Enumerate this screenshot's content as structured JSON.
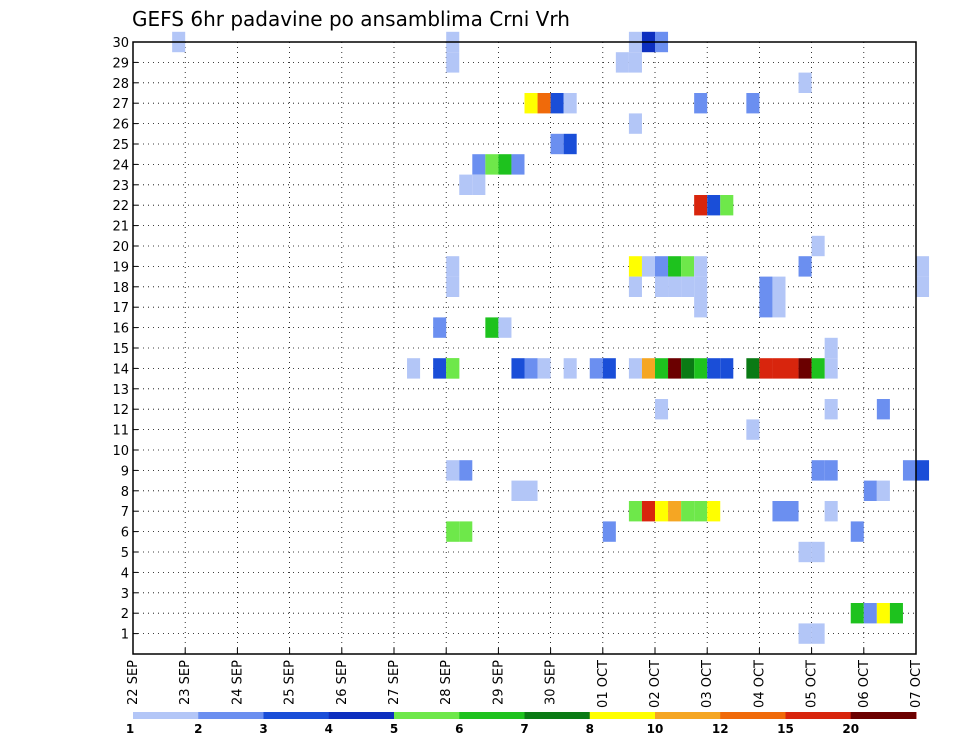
{
  "chart_data": {
    "type": "heatmap",
    "title": "GEFS 6hr padavine po ansamblima Crni Vrh",
    "x_tick_labels": [
      "22 SEP",
      "23 SEP",
      "24 SEP",
      "25 SEP",
      "26 SEP",
      "27 SEP",
      "28 SEP",
      "29 SEP",
      "30 SEP",
      "01 OCT",
      "02 OCT",
      "03 OCT",
      "04 OCT",
      "05 OCT",
      "06 OCT",
      "07 OCT"
    ],
    "y_tick_labels": [
      "1",
      "2",
      "3",
      "4",
      "5",
      "6",
      "7",
      "8",
      "9",
      "10",
      "11",
      "12",
      "13",
      "14",
      "15",
      "16",
      "17",
      "18",
      "19",
      "20",
      "21",
      "22",
      "23",
      "24",
      "25",
      "26",
      "27",
      "28",
      "29",
      "30"
    ],
    "grid": true,
    "legend_position": "bottom",
    "colorbar": {
      "labels": [
        "1",
        "2",
        "3",
        "4",
        "5",
        "6",
        "7",
        "8",
        "10",
        "12",
        "15",
        "20"
      ],
      "colors": [
        "#b3c6f7",
        "#6b8ff0",
        "#1a4ed8",
        "#0d2fbf",
        "#6ee84a",
        "#1ec21e",
        "#0a7a14",
        "#ffff00",
        "#f5a623",
        "#f06a0a",
        "#d8250d",
        "#a80c0c",
        "#6b0000"
      ]
    },
    "member_cells": [
      {
        "member": 30,
        "time": "22 SEP 18Z",
        "level": 1
      },
      {
        "member": 30,
        "time": "28 SEP 00Z",
        "level": 1
      },
      {
        "member": 30,
        "time": "01 OCT 12Z",
        "level": 1
      },
      {
        "member": 30,
        "time": "01 OCT 18Z",
        "level": 4
      },
      {
        "member": 30,
        "time": "02 OCT 00Z",
        "level": 2
      },
      {
        "member": 29,
        "time": "28 SEP 00Z",
        "level": 1
      },
      {
        "member": 29,
        "time": "01 OCT 06Z",
        "level": 1
      },
      {
        "member": 29,
        "time": "01 OCT 12Z",
        "level": 1
      },
      {
        "member": 28,
        "time": "04 OCT 18Z",
        "level": 1
      },
      {
        "member": 27,
        "time": "29 SEP 12Z",
        "level": 8
      },
      {
        "member": 27,
        "time": "29 SEP 18Z",
        "level": 12
      },
      {
        "member": 27,
        "time": "30 SEP 00Z",
        "level": 3
      },
      {
        "member": 27,
        "time": "30 SEP 06Z",
        "level": 1
      },
      {
        "member": 27,
        "time": "02 OCT 18Z",
        "level": 2
      },
      {
        "member": 27,
        "time": "03 OCT 18Z",
        "level": 2
      },
      {
        "member": 26,
        "time": "01 OCT 12Z",
        "level": 1
      },
      {
        "member": 25,
        "time": "30 SEP 00Z",
        "level": 2
      },
      {
        "member": 25,
        "time": "30 SEP 06Z",
        "level": 3
      },
      {
        "member": 24,
        "time": "28 SEP 12Z",
        "level": 2
      },
      {
        "member": 24,
        "time": "28 SEP 18Z",
        "level": 5
      },
      {
        "member": 24,
        "time": "29 SEP 00Z",
        "level": 6
      },
      {
        "member": 24,
        "time": "29 SEP 06Z",
        "level": 2
      },
      {
        "member": 23,
        "time": "28 SEP 06Z",
        "level": 1
      },
      {
        "member": 23,
        "time": "28 SEP 12Z",
        "level": 1
      },
      {
        "member": 22,
        "time": "02 OCT 18Z",
        "level": 15
      },
      {
        "member": 22,
        "time": "03 OCT 00Z",
        "level": 3
      },
      {
        "member": 22,
        "time": "03 OCT 06Z",
        "level": 5
      },
      {
        "member": 20,
        "time": "05 OCT 00Z",
        "level": 1
      },
      {
        "member": 19,
        "time": "28 SEP 00Z",
        "level": 1
      },
      {
        "member": 19,
        "time": "01 OCT 12Z",
        "level": 8
      },
      {
        "member": 19,
        "time": "01 OCT 18Z",
        "level": 1
      },
      {
        "member": 19,
        "time": "02 OCT 00Z",
        "level": 2
      },
      {
        "member": 19,
        "time": "02 OCT 06Z",
        "level": 6
      },
      {
        "member": 19,
        "time": "02 OCT 12Z",
        "level": 5
      },
      {
        "member": 19,
        "time": "02 OCT 18Z",
        "level": 1
      },
      {
        "member": 19,
        "time": "04 OCT 18Z",
        "level": 2
      },
      {
        "member": 19,
        "time": "07 OCT 00Z",
        "level": 1
      },
      {
        "member": 18,
        "time": "28 SEP 00Z",
        "level": 1
      },
      {
        "member": 18,
        "time": "01 OCT 12Z",
        "level": 1
      },
      {
        "member": 18,
        "time": "02 OCT 00Z",
        "level": 1
      },
      {
        "member": 18,
        "time": "02 OCT 06Z",
        "level": 1
      },
      {
        "member": 18,
        "time": "02 OCT 12Z",
        "level": 1
      },
      {
        "member": 18,
        "time": "02 OCT 18Z",
        "level": 1
      },
      {
        "member": 18,
        "time": "04 OCT 00Z",
        "level": 2
      },
      {
        "member": 18,
        "time": "04 OCT 06Z",
        "level": 1
      },
      {
        "member": 18,
        "time": "07 OCT 00Z",
        "level": 1
      },
      {
        "member": 17,
        "time": "02 OCT 18Z",
        "level": 1
      },
      {
        "member": 17,
        "time": "04 OCT 00Z",
        "level": 2
      },
      {
        "member": 17,
        "time": "04 OCT 06Z",
        "level": 1
      },
      {
        "member": 16,
        "time": "27 SEP 18Z",
        "level": 2
      },
      {
        "member": 16,
        "time": "28 SEP 18Z",
        "level": 6
      },
      {
        "member": 16,
        "time": "29 SEP 00Z",
        "level": 1
      },
      {
        "member": 15,
        "time": "05 OCT 06Z",
        "level": 1
      },
      {
        "member": 14,
        "time": "05 OCT 06Z",
        "level": 1
      },
      {
        "member": 14,
        "time": "27 SEP 06Z",
        "level": 1
      },
      {
        "member": 14,
        "time": "27 SEP 18Z",
        "level": 3
      },
      {
        "member": 14,
        "time": "28 SEP 00Z",
        "level": 5
      },
      {
        "member": 14,
        "time": "28 SEP 00Z",
        "level": 5
      },
      {
        "member": 14,
        "time": "29 SEP 06Z",
        "level": 3
      },
      {
        "member": 14,
        "time": "29 SEP 12Z",
        "level": 2
      },
      {
        "member": 14,
        "time": "29 SEP 18Z",
        "level": 1
      },
      {
        "member": 14,
        "time": "30 SEP 06Z",
        "level": 1
      },
      {
        "member": 14,
        "time": "30 SEP 18Z",
        "level": 2
      },
      {
        "member": 14,
        "time": "01 OCT 00Z",
        "level": 3
      },
      {
        "member": 14,
        "time": "01 OCT 12Z",
        "level": 1
      },
      {
        "member": 14,
        "time": "01 OCT 18Z",
        "level": 10
      },
      {
        "member": 14,
        "time": "02 OCT 00Z",
        "level": 6
      },
      {
        "member": 14,
        "time": "02 OCT 06Z",
        "level": 20
      },
      {
        "member": 14,
        "time": "02 OCT 12Z",
        "level": 7
      },
      {
        "member": 14,
        "time": "02 OCT 18Z",
        "level": 6
      },
      {
        "member": 14,
        "time": "03 OCT 00Z",
        "level": 3
      },
      {
        "member": 14,
        "time": "03 OCT 06Z",
        "level": 3
      },
      {
        "member": 14,
        "time": "03 OCT 18Z",
        "level": 7
      },
      {
        "member": 14,
        "time": "04 OCT 00Z",
        "level": 15
      },
      {
        "member": 14,
        "time": "04 OCT 06Z",
        "level": 15
      },
      {
        "member": 14,
        "time": "04 OCT 12Z",
        "level": 15
      },
      {
        "member": 14,
        "time": "04 OCT 18Z",
        "level": 20
      },
      {
        "member": 14,
        "time": "05 OCT 00Z",
        "level": 6
      },
      {
        "member": 12,
        "time": "02 OCT 00Z",
        "level": 1
      },
      {
        "member": 12,
        "time": "05 OCT 06Z",
        "level": 1
      },
      {
        "member": 12,
        "time": "06 OCT 06Z",
        "level": 2
      },
      {
        "member": 11,
        "time": "03 OCT 18Z",
        "level": 1
      },
      {
        "member": 9,
        "time": "28 SEP 00Z",
        "level": 1
      },
      {
        "member": 9,
        "time": "28 SEP 06Z",
        "level": 2
      },
      {
        "member": 9,
        "time": "05 OCT 00Z",
        "level": 2
      },
      {
        "member": 9,
        "time": "05 OCT 06Z",
        "level": 2
      },
      {
        "member": 9,
        "time": "06 OCT 18Z",
        "level": 2
      },
      {
        "member": 9,
        "time": "07 OCT 00Z",
        "level": 3
      },
      {
        "member": 8,
        "time": "29 SEP 06Z",
        "level": 1
      },
      {
        "member": 8,
        "time": "29 SEP 12Z",
        "level": 1
      },
      {
        "member": 8,
        "time": "06 OCT 00Z",
        "level": 2
      },
      {
        "member": 8,
        "time": "06 OCT 06Z",
        "level": 1
      },
      {
        "member": 7,
        "time": "01 OCT 12Z",
        "level": 5
      },
      {
        "member": 7,
        "time": "01 OCT 18Z",
        "level": 15
      },
      {
        "member": 7,
        "time": "02 OCT 00Z",
        "level": 8
      },
      {
        "member": 7,
        "time": "02 OCT 06Z",
        "level": 10
      },
      {
        "member": 7,
        "time": "02 OCT 12Z",
        "level": 5
      },
      {
        "member": 7,
        "time": "02 OCT 18Z",
        "level": 5
      },
      {
        "member": 7,
        "time": "03 OCT 00Z",
        "level": 8
      },
      {
        "member": 7,
        "time": "04 OCT 06Z",
        "level": 2
      },
      {
        "member": 7,
        "time": "04 OCT 12Z",
        "level": 2
      },
      {
        "member": 7,
        "time": "05 OCT 06Z",
        "level": 1
      },
      {
        "member": 6,
        "time": "28 SEP 00Z",
        "level": 5
      },
      {
        "member": 6,
        "time": "28 SEP 06Z",
        "level": 5
      },
      {
        "member": 6,
        "time": "01 OCT 00Z",
        "level": 2
      },
      {
        "member": 6,
        "time": "05 OCT 18Z",
        "level": 2
      },
      {
        "member": 5,
        "time": "04 OCT 18Z",
        "level": 1
      },
      {
        "member": 5,
        "time": "05 OCT 00Z",
        "level": 1
      },
      {
        "member": 2,
        "time": "05 OCT 18Z",
        "level": 6
      },
      {
        "member": 2,
        "time": "06 OCT 00Z",
        "level": 2
      },
      {
        "member": 2,
        "time": "06 OCT 06Z",
        "level": 8
      },
      {
        "member": 2,
        "time": "06 OCT 12Z",
        "level": 6
      },
      {
        "member": 1,
        "time": "04 OCT 18Z",
        "level": 1
      },
      {
        "member": 1,
        "time": "05 OCT 00Z",
        "level": 1
      }
    ]
  }
}
